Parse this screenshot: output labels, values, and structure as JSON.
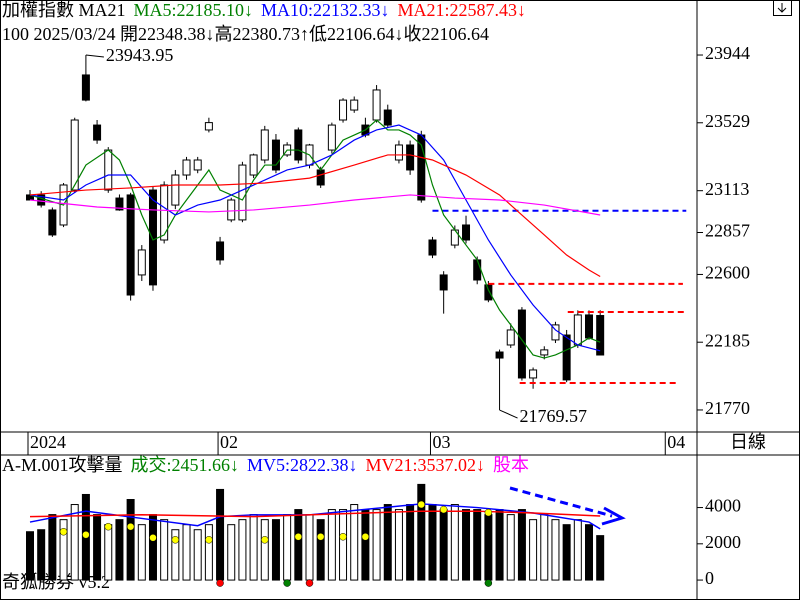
{
  "chart_data": [
    {
      "type": "candlestick",
      "header": [
        {
          "text": "加權指數 MA21",
          "color": "#000000"
        },
        {
          "text": "MA5:22185.10↓",
          "color": "#008000"
        },
        {
          "text": "MA10:22132.33↓",
          "color": "#0000ff"
        },
        {
          "text": "MA21:22587.43↓",
          "color": "#ff0000"
        }
      ],
      "info": "100 2025/03/24 開22348.38↓高22380.73↑低22106.64↓收22106.64",
      "ylim": [
        21635,
        24281
      ],
      "yticks": [
        23944,
        23529,
        23113,
        22857,
        22600,
        22185,
        21770
      ],
      "x_labels": [
        {
          "index": 0,
          "label": "2024"
        },
        {
          "index": 17,
          "label": "02"
        },
        {
          "index": 36,
          "label": "03"
        },
        {
          "index": 57,
          "label": "04"
        }
      ],
      "up_color": "#ffffff",
      "down_color": "#000000",
      "ohlc": [
        [
          23087,
          23117,
          23056,
          23056
        ],
        [
          23087,
          23110,
          23010,
          23025
        ],
        [
          22995,
          23010,
          22830,
          22842
        ],
        [
          22903,
          23160,
          22890,
          23148
        ],
        [
          23117,
          23560,
          23100,
          23546
        ],
        [
          23822,
          23943.95,
          23660,
          23668
        ],
        [
          23515,
          23546,
          23400,
          23423
        ],
        [
          23117,
          23380,
          23100,
          23362
        ],
        [
          23068,
          23090,
          22990,
          22995
        ],
        [
          23087,
          23100,
          22440,
          22474
        ],
        [
          22597,
          22780,
          22560,
          22750
        ],
        [
          23117,
          23140,
          22500,
          22536
        ],
        [
          22811,
          23170,
          22790,
          23148
        ],
        [
          23025,
          23240,
          23000,
          23209
        ],
        [
          23209,
          23320,
          23180,
          23301
        ],
        [
          23240,
          23320,
          23220,
          23301
        ],
        [
          23485,
          23560,
          23470,
          23530
        ],
        [
          22799,
          22830,
          22660,
          22689
        ],
        [
          22934,
          23070,
          22920,
          23056
        ],
        [
          22934,
          23290,
          22920,
          23270
        ],
        [
          23209,
          23340,
          23190,
          23332
        ],
        [
          23301,
          23510,
          23280,
          23485
        ],
        [
          23423,
          23460,
          23220,
          23240
        ],
        [
          23332,
          23410,
          23320,
          23393
        ],
        [
          23485,
          23500,
          23280,
          23301
        ],
        [
          23270,
          23400,
          23250,
          23393
        ],
        [
          23240,
          23260,
          23130,
          23148
        ],
        [
          23362,
          23530,
          23340,
          23515
        ],
        [
          23546,
          23680,
          23530,
          23668
        ],
        [
          23607,
          23690,
          23590,
          23668
        ],
        [
          23515,
          23560,
          23440,
          23454
        ],
        [
          23546,
          23760,
          23530,
          23730
        ],
        [
          23607,
          23640,
          23500,
          23515
        ],
        [
          23301,
          23420,
          23280,
          23393
        ],
        [
          23393,
          23420,
          23210,
          23240
        ],
        [
          23454,
          23480,
          23040,
          23056
        ],
        [
          22811,
          22830,
          22700,
          22719
        ],
        [
          22597,
          22620,
          22360,
          22505
        ],
        [
          22780,
          22900,
          22760,
          22872
        ],
        [
          22903,
          22960,
          22790,
          22811
        ],
        [
          22689,
          22710,
          22540,
          22566
        ],
        [
          22536,
          22560,
          22430,
          22444
        ],
        [
          22125,
          22140,
          21769.57,
          22088
        ],
        [
          22168,
          22300,
          22150,
          22260
        ],
        [
          22382,
          22400,
          21950,
          21966
        ],
        [
          21966,
          22030,
          21900,
          22015
        ],
        [
          22107,
          22160,
          22080,
          22138
        ],
        [
          22199,
          22310,
          22180,
          22291
        ],
        [
          22229,
          22260,
          21940,
          21954
        ],
        [
          22168,
          22380,
          22150,
          22352
        ],
        [
          22352,
          22380,
          22200,
          22211
        ],
        [
          22348.38,
          22380.73,
          22106.64,
          22106.64
        ]
      ],
      "series": [
        {
          "color": "#008000",
          "x": [
            0,
            3,
            5,
            7,
            8,
            9,
            10,
            11,
            12,
            13,
            14,
            15,
            16,
            17,
            18,
            19,
            20,
            21,
            22,
            23,
            24,
            25,
            26,
            27,
            28,
            29,
            30,
            31,
            32,
            33,
            34,
            35,
            36,
            37,
            38,
            39,
            40,
            41,
            42,
            43,
            44,
            45,
            46,
            47,
            48,
            49,
            50,
            51
          ],
          "values": [
            23087,
            23025,
            23270,
            23362,
            23301,
            23148,
            22964,
            22811,
            22842,
            22964,
            23056,
            23148,
            23240,
            23117,
            23087,
            23056,
            23178,
            23270,
            23270,
            23362,
            23362,
            23332,
            23240,
            23332,
            23423,
            23454,
            23485,
            23546,
            23485,
            23485,
            23454,
            23393,
            23148,
            22964,
            22872,
            22780,
            22689,
            22505,
            22382,
            22291,
            22199,
            22107,
            22088,
            22107,
            22138,
            22168,
            22211,
            22185.1
          ]
        },
        {
          "color": "#0000ff",
          "x": [
            0,
            3,
            5,
            7,
            9,
            11,
            13,
            15,
            17,
            19,
            21,
            23,
            25,
            27,
            29,
            31,
            33,
            35,
            37,
            39,
            41,
            43,
            45,
            47,
            49,
            51
          ],
          "values": [
            23087,
            23056,
            23148,
            23209,
            23209,
            23056,
            22964,
            23025,
            23056,
            23117,
            23178,
            23240,
            23270,
            23332,
            23423,
            23485,
            23515,
            23454,
            23301,
            23056,
            22811,
            22597,
            22413,
            22260,
            22168,
            22132.33
          ]
        },
        {
          "color": "#ff0000",
          "x": [
            0,
            5,
            9,
            13,
            17,
            21,
            25,
            29,
            32,
            34,
            36,
            39,
            42,
            44,
            46,
            48,
            50,
            51
          ],
          "values": [
            23087,
            23117,
            23130,
            23148,
            23148,
            23160,
            23190,
            23270,
            23332,
            23332,
            23301,
            23209,
            23087,
            22964,
            22842,
            22719,
            22627,
            22587.43
          ]
        },
        {
          "color": "#ff00ff",
          "x": [
            0,
            6,
            11,
            16,
            20,
            25,
            29,
            34,
            38,
            42,
            46,
            51
          ],
          "values": [
            23056,
            23013,
            22995,
            22983,
            22995,
            23025,
            23056,
            23087,
            23068,
            23056,
            23025,
            22964
          ]
        }
      ],
      "reference_lines": [
        {
          "value": 22990,
          "start": 36,
          "end": 58.7,
          "color": "#0000ff"
        },
        {
          "value": 22542,
          "start": 41,
          "end": 58.4,
          "color": "#ff0000"
        },
        {
          "value": 22370,
          "start": 48.1,
          "end": 58.7,
          "color": "#ff0000"
        },
        {
          "value": 21935,
          "start": 43.8,
          "end": 57.8,
          "color": "#ff0000"
        }
      ],
      "annotations": [
        {
          "text": "23943.95",
          "index": 5,
          "value": 23943.95
        },
        {
          "text": "21769.57",
          "index": 42,
          "value": 21769.57
        }
      ]
    },
    {
      "type": "bar",
      "header": [
        {
          "text": "A-M.001攻擊量",
          "color": "#000000"
        },
        {
          "text": "成交:2451.66↓",
          "color": "#008000"
        },
        {
          "text": "MV5:2822.38↓",
          "color": "#0000ff"
        },
        {
          "text": "MV21:3537.02↓",
          "color": "#ff0000"
        },
        {
          "text": "股本",
          "color": "#ff00ff"
        }
      ],
      "ylim": [
        -1100,
        6900
      ],
      "yticks": [
        4000,
        2000,
        0
      ],
      "values": [
        2667,
        2778,
        3611,
        3333,
        4167,
        4722,
        3611,
        3056,
        3333,
        4444,
        3056,
        3611,
        3333,
        2778,
        3056,
        2778,
        3056,
        5000,
        3056,
        3333,
        3611,
        3333,
        3333,
        3611,
        3889,
        3611,
        3333,
        3889,
        3889,
        4167,
        3889,
        3889,
        4167,
        3889,
        4167,
        5278,
        4167,
        3889,
        4167,
        3889,
        3889,
        3611,
        3889,
        3611,
        3889,
        3333,
        3611,
        3333,
        3056,
        3333,
        3056,
        2451.66
      ],
      "series": [
        {
          "color": "#0000ff",
          "x": [
            0,
            5,
            10,
            15,
            17,
            20,
            25,
            30,
            35,
            40,
            45,
            50,
            51
          ],
          "values": [
            3200,
            3800,
            3400,
            3000,
            3500,
            3600,
            3600,
            3900,
            4200,
            4000,
            3700,
            3200,
            2822.38
          ]
        },
        {
          "color": "#ff0000",
          "x": [
            0,
            10,
            20,
            30,
            35,
            40,
            45,
            51
          ],
          "values": [
            3500,
            3600,
            3500,
            3700,
            3800,
            3800,
            3700,
            3537.02
          ]
        }
      ],
      "markers": {
        "color": "#ffff00",
        "x": [
          3,
          5,
          7,
          9,
          11,
          13,
          16,
          21,
          24,
          26,
          28,
          30,
          35,
          37,
          41
        ],
        "values": [
          2667,
          2500,
          2944,
          2944,
          2333,
          2222,
          2222,
          2222,
          2389,
          2389,
          2389,
          2389,
          4167,
          3889,
          3722
        ]
      },
      "signals": [
        {
          "index": 17,
          "color": "#ff0000"
        },
        {
          "index": 23,
          "color": "#008000"
        },
        {
          "index": 25,
          "color": "#ff0000"
        },
        {
          "index": 41,
          "color": "#008000"
        }
      ]
    }
  ],
  "period": "日線",
  "footer": "奇狐勝券 v5.2"
}
